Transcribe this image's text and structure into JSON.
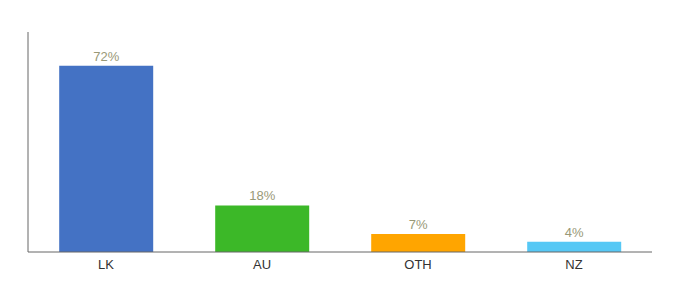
{
  "chart_data": {
    "type": "bar",
    "categories": [
      "LK",
      "AU",
      "OTH",
      "NZ"
    ],
    "values": [
      72,
      18,
      7,
      4
    ],
    "value_labels": [
      "72%",
      "18%",
      "7%",
      "4%"
    ],
    "data_labels": true,
    "colors": [
      "#4472C4",
      "#3CB828",
      "#FFA500",
      "#56C8F5"
    ],
    "ylim": [
      0,
      85
    ],
    "grid": false,
    "tick_labels": "x"
  }
}
